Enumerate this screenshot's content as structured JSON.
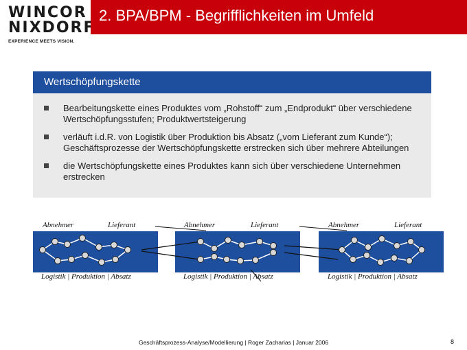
{
  "logo": {
    "line1": "WINCOR",
    "line2": "NIXDORF",
    "tagline": "EXPERIENCE MEETS VISION."
  },
  "title": "2. BPA/BPM - Begrifflichkeiten im Umfeld",
  "box": {
    "header": "Wertschöpfungskette",
    "bullets": [
      "Bearbeitungskette eines Produktes vom „Rohstoff“ zum „Endprodukt“ über verschiedene Wertschöpfungsstufen; Produktwertsteigerung",
      "verläuft i.d.R. von Logistik über Produktion bis Absatz („vom Lieferant zum Kunde“); Geschäftsprozesse der Wertschöpfungskette erstrecken sich über mehrere Abteilungen",
      "die Wertschöpfungskette eines Produktes kann sich über verschiedene Unternehmen erstrecken"
    ]
  },
  "chains": [
    {
      "top_left": "Abnehmer",
      "top_right": "Lieferant",
      "bottom": "Logistik  |  Produktion    |  Absatz"
    },
    {
      "top_left": "Abnehmer",
      "top_right": "Lieferant",
      "bottom": "Logistik  |  Produktion    |  Absatz"
    },
    {
      "top_left": "Abnehmer",
      "top_right": "Lieferant",
      "bottom": "Logistik  |  Produktion    |  Absatz"
    }
  ],
  "footer": "Geschäftsprozess-Analyse/Modellierung | Roger Zacharias | Januar 2006",
  "page_number": "8",
  "colors": {
    "title_bar": "#c8000a",
    "box_header": "#1e4f9e",
    "box_bg": "#eaeaea"
  }
}
